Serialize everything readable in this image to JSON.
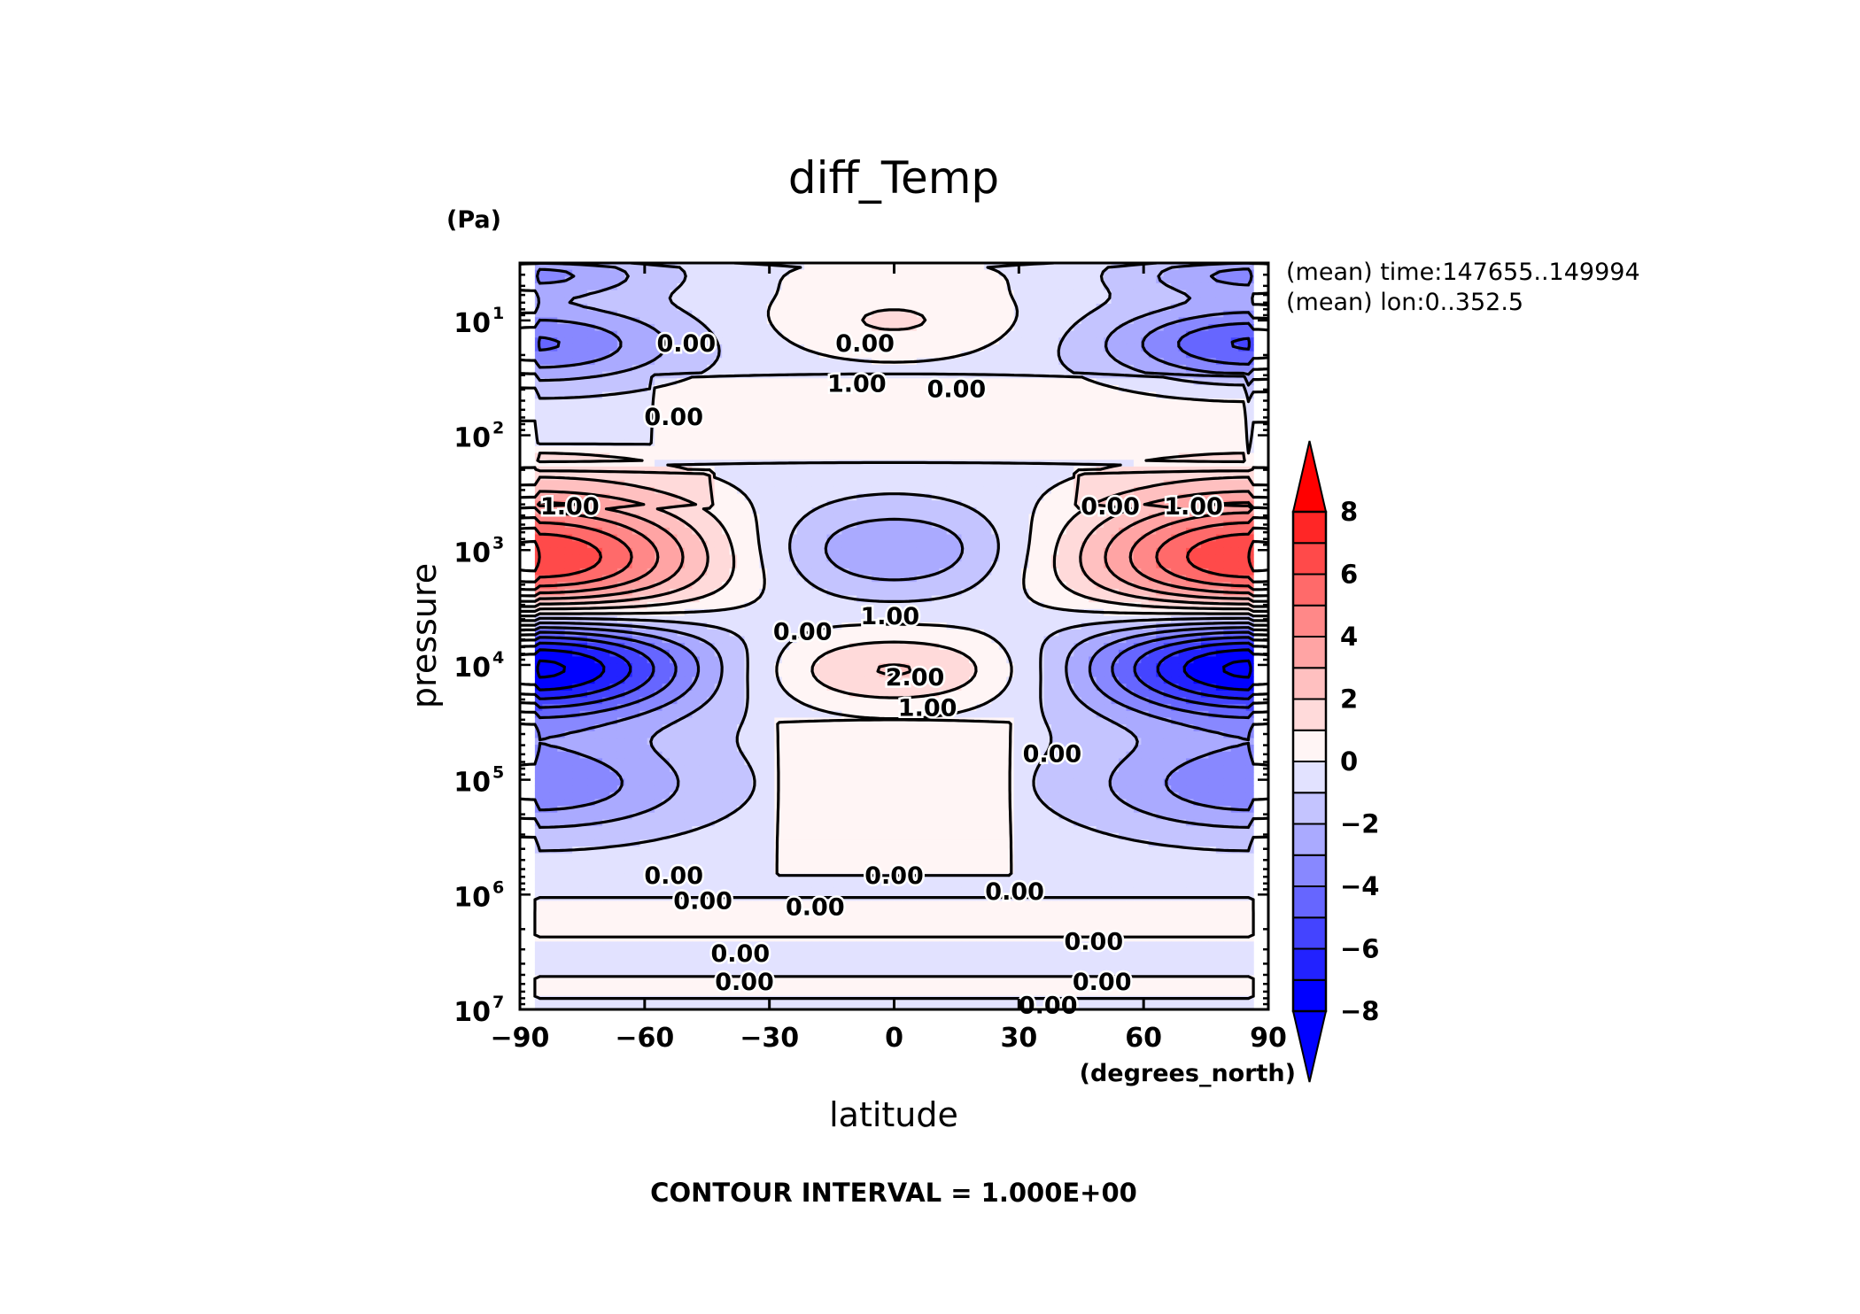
{
  "chart_data": {
    "type": "heatmap",
    "title": "diff_Temp",
    "xlabel": "latitude",
    "xunit": "(degrees_north)",
    "ylabel": "pressure",
    "yunit": "(Pa)",
    "yscale": "log",
    "yinverted": true,
    "xlim": [
      -90,
      90
    ],
    "ylim": [
      3.16,
      10000000
    ],
    "xticks": [
      -90,
      -60,
      -30,
      0,
      30,
      60,
      90
    ],
    "xtick_labels": [
      "−90",
      "−60",
      "−30",
      "0",
      "30",
      "60",
      "90"
    ],
    "yticks": [
      10,
      100,
      1000,
      10000,
      100000,
      1000000,
      10000000
    ],
    "ytick_labels": [
      {
        "base": "10",
        "exp": "1"
      },
      {
        "base": "10",
        "exp": "2"
      },
      {
        "base": "10",
        "exp": "3"
      },
      {
        "base": "10",
        "exp": "4"
      },
      {
        "base": "10",
        "exp": "5"
      },
      {
        "base": "10",
        "exp": "6"
      },
      {
        "base": "10",
        "exp": "7"
      }
    ],
    "annotations": [
      "(mean) time:147655..149994",
      "(mean) lon:0..352.5"
    ],
    "contour_interval_text": "CONTOUR INTERVAL = 1.000E+00",
    "contour_interval": 1.0,
    "colorbar": {
      "min": -8,
      "max": 8,
      "step": 1,
      "extend": "both",
      "ticks": [
        -8,
        -6,
        -4,
        -2,
        0,
        2,
        4,
        6,
        8
      ],
      "tick_labels": [
        "−8",
        "−6",
        "−4",
        "−2",
        "0",
        "2",
        "4",
        "6",
        "8"
      ],
      "colors": [
        "#0000ff",
        "#2222ff",
        "#4444ff",
        "#6666ff",
        "#8888ff",
        "#aaaaff",
        "#c4c4ff",
        "#e2e2ff",
        "#fff5f5",
        "#ffdada",
        "#ffc0c0",
        "#ffa4a4",
        "#ff8888",
        "#ff6a6a",
        "#ff4a4a",
        "#ff2626"
      ],
      "under_color": "#0000ff",
      "over_color": "#ff0000"
    },
    "contour_labels": [
      {
        "text": "0.00",
        "lat": -50,
        "p": 16
      },
      {
        "text": "0.00",
        "lat": -7,
        "p": 16
      },
      {
        "text": "1.00",
        "lat": -9,
        "p": 36
      },
      {
        "text": "0.00",
        "lat": 15,
        "p": 40
      },
      {
        "text": "0.00",
        "lat": -53,
        "p": 70
      },
      {
        "text": "1.00",
        "lat": -78,
        "p": 420
      },
      {
        "text": "0.00",
        "lat": 52,
        "p": 420
      },
      {
        "text": "1.00",
        "lat": 72,
        "p": 420
      },
      {
        "text": "0.00",
        "lat": -22,
        "p": 5200
      },
      {
        "text": "1.00",
        "lat": -1,
        "p": 3800
      },
      {
        "text": "2.00",
        "lat": 5,
        "p": 13000
      },
      {
        "text": "1.00",
        "lat": 8,
        "p": 24000
      },
      {
        "text": "0.00",
        "lat": 38,
        "p": 60000
      },
      {
        "text": "0.00",
        "lat": -53,
        "p": 690000
      },
      {
        "text": "0.00",
        "lat": 0,
        "p": 690000
      },
      {
        "text": "0.00",
        "lat": 29,
        "p": 950000
      },
      {
        "text": "0.00",
        "lat": -46,
        "p": 1150000
      },
      {
        "text": "0.00",
        "lat": -19,
        "p": 1300000
      },
      {
        "text": "0.00",
        "lat": -37,
        "p": 3300000
      },
      {
        "text": "0.00",
        "lat": -36,
        "p": 5800000
      },
      {
        "text": "0.00",
        "lat": 48,
        "p": 2600000
      },
      {
        "text": "0.00",
        "lat": 50,
        "p": 5800000
      },
      {
        "text": "0.00",
        "lat": 37,
        "p": 9300000
      }
    ],
    "bands": [
      {
        "lat_min": -86,
        "lat_max": 86,
        "p_min": 3.2,
        "p_max": 10000000,
        "value": -0.5
      },
      {
        "lat_min": -58,
        "lat_max": 84,
        "p_min": 30,
        "p_max": 120,
        "value": 0.5
      },
      {
        "lat_min": -86,
        "lat_max": 84,
        "p_min": 120,
        "p_max": 170,
        "value": 0.5
      },
      {
        "lat_min": -86,
        "lat_max": -44,
        "p_min": 200,
        "p_max": 420,
        "value": 0.5
      },
      {
        "lat_min": 44,
        "lat_max": 86,
        "p_min": 200,
        "p_max": 420,
        "value": 0.5
      },
      {
        "lat_min": -28,
        "lat_max": 28,
        "p_min": 30000,
        "p_max": 700000,
        "value": 0.5
      },
      {
        "lat_min": -86,
        "lat_max": 86,
        "p_min": 1100000,
        "p_max": 2400000,
        "value": 0.5
      },
      {
        "lat_min": -86,
        "lat_max": 86,
        "p_min": 5200000,
        "p_max": 8000000,
        "value": 0.5
      }
    ],
    "blobs": [
      {
        "lat": -86,
        "p": 1200,
        "lat_radius": 42,
        "p_decades": 0.56,
        "amplitude": 7.6
      },
      {
        "lat": 86,
        "p": 1200,
        "lat_radius": 42,
        "p_decades": 0.56,
        "amplitude": 7.6
      },
      {
        "lat": -86,
        "p": 10000,
        "lat_radius": 40,
        "p_decades": 0.46,
        "amplitude": -8.2
      },
      {
        "lat": 86,
        "p": 10000,
        "lat_radius": 40,
        "p_decades": 0.46,
        "amplitude": -8.2
      },
      {
        "lat": -86,
        "p": 16,
        "lat_radius": 34,
        "p_decades": 0.34,
        "amplitude": -3.6
      },
      {
        "lat": 86,
        "p": 16,
        "lat_radius": 34,
        "p_decades": 0.34,
        "amplitude": -4.6
      },
      {
        "lat": -86,
        "p": 4,
        "lat_radius": 28,
        "p_decades": 0.18,
        "amplitude": -2.6
      },
      {
        "lat": 86,
        "p": 4,
        "lat_radius": 28,
        "p_decades": 0.18,
        "amplitude": -2.6
      },
      {
        "lat": 0,
        "p": 1000,
        "lat_radius": 32,
        "p_decades": 0.4,
        "amplitude": -2.6
      },
      {
        "lat": 0,
        "p": 11000,
        "lat_radius": 36,
        "p_decades": 0.34,
        "amplitude": 2.7
      },
      {
        "lat": -86,
        "p": 110000,
        "lat_radius": 38,
        "p_decades": 0.42,
        "amplitude": -3.3
      },
      {
        "lat": 86,
        "p": 110000,
        "lat_radius": 38,
        "p_decades": 0.42,
        "amplitude": -3.3
      },
      {
        "lat": 0,
        "p": 10,
        "lat_radius": 32,
        "p_decades": 0.34,
        "amplitude": 1.6
      },
      {
        "lat": 0,
        "p": 4,
        "lat_radius": 26,
        "p_decades": 0.16,
        "amplitude": 0.9
      }
    ]
  }
}
